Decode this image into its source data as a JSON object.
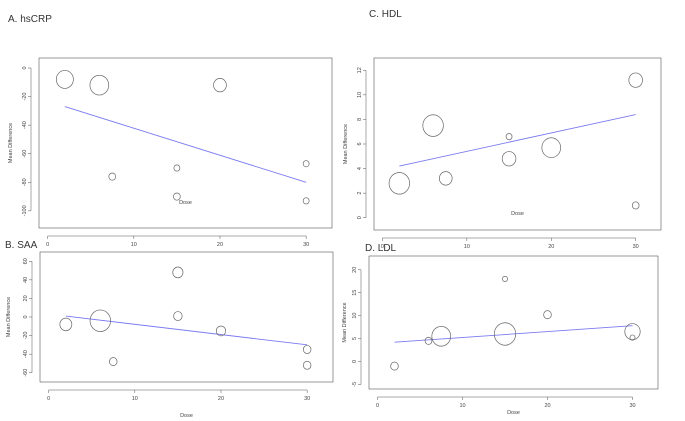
{
  "chart_data": [
    {
      "type": "scatter",
      "panel_label": "A. hsCRP",
      "xlabel": "Dose",
      "ylabel": "Mean Difference",
      "xlim": [
        -1,
        33
      ],
      "ylim": [
        -112,
        7
      ],
      "x_ticks": [
        0,
        10,
        20,
        30
      ],
      "y_ticks": [
        0,
        -20,
        -40,
        -60,
        -80,
        -100
      ],
      "points": [
        {
          "x": 2,
          "y": -8,
          "size": 1.0
        },
        {
          "x": 6,
          "y": -12,
          "size": 1.1
        },
        {
          "x": 7.5,
          "y": -76,
          "size": 0.4
        },
        {
          "x": 15,
          "y": -70,
          "size": 0.35
        },
        {
          "x": 15,
          "y": -90,
          "size": 0.4
        },
        {
          "x": 20,
          "y": -12,
          "size": 0.75
        },
        {
          "x": 30,
          "y": -67,
          "size": 0.35
        },
        {
          "x": 30,
          "y": -93,
          "size": 0.35
        }
      ],
      "fit_line": {
        "x": [
          2,
          30
        ],
        "y": [
          -27,
          -80
        ]
      }
    },
    {
      "type": "scatter",
      "panel_label": "C. HDL",
      "xlabel": "Dose",
      "ylabel": "Mean Difference",
      "xlim": [
        -1,
        33
      ],
      "ylim": [
        -1,
        13
      ],
      "x_ticks": [
        0,
        10,
        20,
        30
      ],
      "y_ticks": [
        0,
        2,
        4,
        6,
        8,
        10,
        12
      ],
      "points": [
        {
          "x": 2,
          "y": 2.8,
          "size": 1.2
        },
        {
          "x": 6,
          "y": 7.5,
          "size": 1.2
        },
        {
          "x": 7.5,
          "y": 3.2,
          "size": 0.75
        },
        {
          "x": 15,
          "y": 6.6,
          "size": 0.35
        },
        {
          "x": 15,
          "y": 4.8,
          "size": 0.8
        },
        {
          "x": 20,
          "y": 5.7,
          "size": 1.1
        },
        {
          "x": 30,
          "y": 11.2,
          "size": 0.8
        },
        {
          "x": 30,
          "y": 1.0,
          "size": 0.4
        }
      ],
      "fit_line": {
        "x": [
          2,
          30
        ],
        "y": [
          4.2,
          8.4
        ]
      }
    },
    {
      "type": "scatter",
      "panel_label": "B. SAA",
      "xlabel": "Dose",
      "ylabel": "Mean Difference",
      "xlim": [
        -1,
        33
      ],
      "ylim": [
        -70,
        70
      ],
      "x_ticks": [
        0,
        10,
        20,
        30
      ],
      "y_ticks": [
        60,
        40,
        20,
        0,
        -20,
        -40,
        -60
      ],
      "points": [
        {
          "x": 2,
          "y": -8,
          "size": 0.7
        },
        {
          "x": 6,
          "y": -4,
          "size": 1.2
        },
        {
          "x": 7.5,
          "y": -48,
          "size": 0.45
        },
        {
          "x": 15,
          "y": 48,
          "size": 0.6
        },
        {
          "x": 15,
          "y": 1,
          "size": 0.5
        },
        {
          "x": 20,
          "y": -15,
          "size": 0.55
        },
        {
          "x": 30,
          "y": -35,
          "size": 0.45
        },
        {
          "x": 30,
          "y": -52,
          "size": 0.45
        }
      ],
      "fit_line": {
        "x": [
          2,
          30
        ],
        "y": [
          1,
          -30
        ]
      }
    },
    {
      "type": "scatter",
      "panel_label": "D. LDL",
      "xlabel": "Dose",
      "ylabel": "Mean Difference",
      "xlim": [
        -1,
        33
      ],
      "ylim": [
        -6,
        23
      ],
      "x_ticks": [
        0,
        10,
        20,
        30
      ],
      "y_ticks": [
        -5,
        0,
        5,
        10,
        15,
        20
      ],
      "points": [
        {
          "x": 2,
          "y": -1,
          "size": 0.45
        },
        {
          "x": 6,
          "y": 4.5,
          "size": 0.4
        },
        {
          "x": 7.5,
          "y": 5.5,
          "size": 1.1
        },
        {
          "x": 15,
          "y": 18,
          "size": 0.3
        },
        {
          "x": 15,
          "y": 6,
          "size": 1.25
        },
        {
          "x": 20,
          "y": 10.2,
          "size": 0.45
        },
        {
          "x": 30,
          "y": 6.5,
          "size": 0.9
        },
        {
          "x": 30,
          "y": 5.2,
          "size": 0.3
        }
      ],
      "fit_line": {
        "x": [
          2,
          30
        ],
        "y": [
          4.2,
          7.8
        ]
      }
    }
  ]
}
